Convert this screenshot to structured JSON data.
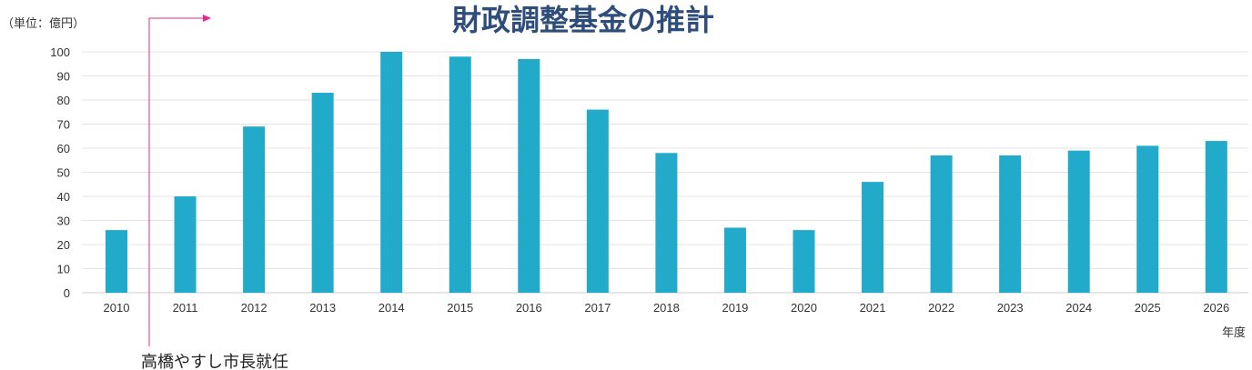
{
  "chart_data": {
    "type": "bar",
    "title": "財政調整基金の推計",
    "unit_label": "（単位：億円）",
    "xlabel": "年度",
    "ylabel": "",
    "categories": [
      "2010",
      "2011",
      "2012",
      "2013",
      "2014",
      "2015",
      "2016",
      "2017",
      "2018",
      "2019",
      "2020",
      "2021",
      "2022",
      "2023",
      "2024",
      "2025",
      "2026"
    ],
    "values": [
      26,
      40,
      69,
      83,
      100,
      98,
      97,
      76,
      58,
      27,
      26,
      46,
      57,
      57,
      59,
      61,
      63
    ],
    "ylim": [
      0,
      100
    ],
    "yticks": [
      0,
      10,
      20,
      30,
      40,
      50,
      60,
      70,
      80,
      90,
      100
    ],
    "grid": true,
    "bar_color": "#22aacb",
    "annotation": {
      "text": "高橋やすし市長就任",
      "at_category": "2011",
      "color": "#e8278c"
    }
  }
}
